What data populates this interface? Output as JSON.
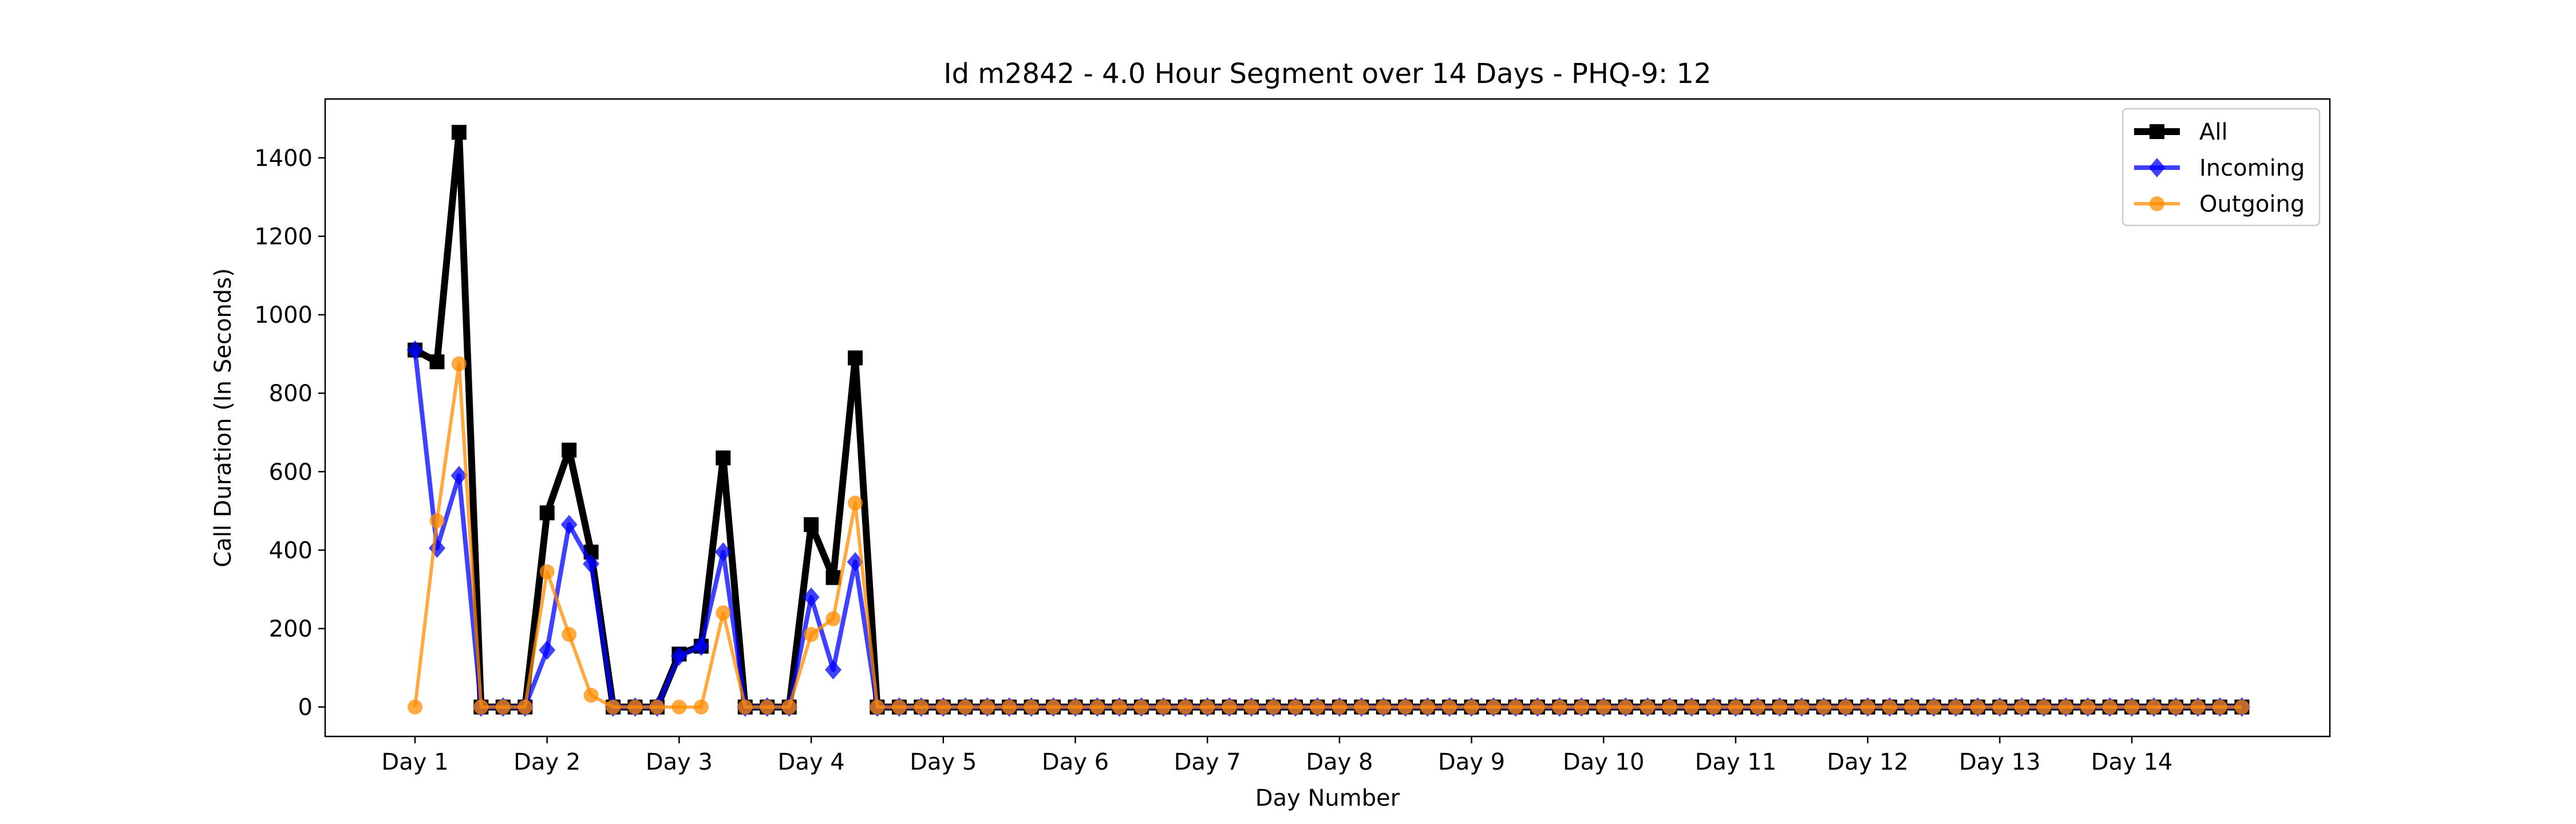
{
  "chart_data": {
    "type": "line",
    "title": "Id m2842 - 4.0 Hour Segment over 14 Days - PHQ-9: 12",
    "xlabel": "Day Number",
    "ylabel": "Call Duration (In Seconds)",
    "ylim": [
      -75,
      1550
    ],
    "y_ticks": [
      0,
      200,
      400,
      600,
      800,
      1000,
      1200,
      1400
    ],
    "x_tick_labels": [
      "Day 1",
      "Day 2",
      "Day 3",
      "Day 4",
      "Day 5",
      "Day 6",
      "Day 7",
      "Day 8",
      "Day 9",
      "Day 10",
      "Day 11",
      "Day 12",
      "Day 13",
      "Day 14"
    ],
    "segments_per_day": 6,
    "grid": false,
    "legend_position": "top-right",
    "series": [
      {
        "name": "All",
        "color": "#000000",
        "marker": "square",
        "values": [
          910,
          880,
          1465,
          0,
          0,
          0,
          495,
          655,
          395,
          0,
          0,
          0,
          135,
          155,
          635,
          0,
          0,
          0,
          465,
          330,
          890,
          0,
          0,
          0,
          0,
          0,
          0,
          0,
          0,
          0,
          0,
          0,
          0,
          0,
          0,
          0,
          0,
          0,
          0,
          0,
          0,
          0,
          0,
          0,
          0,
          0,
          0,
          0,
          0,
          0,
          0,
          0,
          0,
          0,
          0,
          0,
          0,
          0,
          0,
          0,
          0,
          0,
          0,
          0,
          0,
          0,
          0,
          0,
          0,
          0,
          0,
          0,
          0,
          0,
          0,
          0,
          0,
          0,
          0,
          0,
          0,
          0,
          0,
          0
        ]
      },
      {
        "name": "Incoming",
        "color": "#0000ff",
        "marker": "diamond",
        "values": [
          910,
          405,
          590,
          0,
          0,
          0,
          145,
          465,
          365,
          0,
          0,
          0,
          130,
          155,
          395,
          0,
          0,
          0,
          280,
          95,
          370,
          0,
          0,
          0,
          0,
          0,
          0,
          0,
          0,
          0,
          0,
          0,
          0,
          0,
          0,
          0,
          0,
          0,
          0,
          0,
          0,
          0,
          0,
          0,
          0,
          0,
          0,
          0,
          0,
          0,
          0,
          0,
          0,
          0,
          0,
          0,
          0,
          0,
          0,
          0,
          0,
          0,
          0,
          0,
          0,
          0,
          0,
          0,
          0,
          0,
          0,
          0,
          0,
          0,
          0,
          0,
          0,
          0,
          0,
          0,
          0,
          0,
          0,
          0
        ]
      },
      {
        "name": "Outgoing",
        "color": "#ff8c00",
        "marker": "circle",
        "values": [
          0,
          475,
          875,
          0,
          0,
          0,
          345,
          185,
          30,
          0,
          0,
          0,
          0,
          0,
          240,
          0,
          0,
          0,
          185,
          225,
          520,
          0,
          0,
          0,
          0,
          0,
          0,
          0,
          0,
          0,
          0,
          0,
          0,
          0,
          0,
          0,
          0,
          0,
          0,
          0,
          0,
          0,
          0,
          0,
          0,
          0,
          0,
          0,
          0,
          0,
          0,
          0,
          0,
          0,
          0,
          0,
          0,
          0,
          0,
          0,
          0,
          0,
          0,
          0,
          0,
          0,
          0,
          0,
          0,
          0,
          0,
          0,
          0,
          0,
          0,
          0,
          0,
          0,
          0,
          0,
          0,
          0,
          0,
          0
        ]
      }
    ]
  }
}
